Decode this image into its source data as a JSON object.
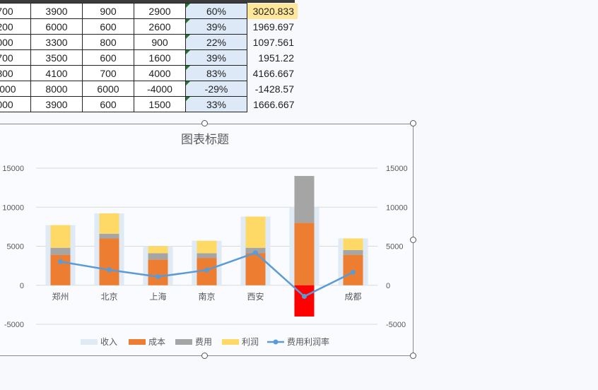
{
  "table": {
    "rows": [
      {
        "city_tail": "700",
        "cost": "3900",
        "fee": "900",
        "profit": "2900",
        "pct": "60%",
        "rate": "3020.833"
      },
      {
        "city_tail": "200",
        "cost": "6000",
        "fee": "600",
        "profit": "2600",
        "pct": "39%",
        "rate": "1969.697"
      },
      {
        "city_tail": "000",
        "cost": "3300",
        "fee": "800",
        "profit": "900",
        "pct": "22%",
        "rate": "1097.561"
      },
      {
        "city_tail": "700",
        "cost": "3500",
        "fee": "600",
        "profit": "1600",
        "pct": "39%",
        "rate": "1951.22"
      },
      {
        "city_tail": "800",
        "cost": "4100",
        "fee": "700",
        "profit": "4000",
        "pct": "83%",
        "rate": "4166.667"
      },
      {
        "city_tail": "0000",
        "cost": "8000",
        "fee": "6000",
        "profit": "-4000",
        "pct": "-29%",
        "rate": "-1428.57"
      },
      {
        "city_tail": "000",
        "cost": "3900",
        "fee": "600",
        "profit": "1500",
        "pct": "33%",
        "rate": "1666.667"
      }
    ]
  },
  "chart_data": {
    "type": "bar",
    "title": "图表标题",
    "categories": [
      "郑州",
      "北京",
      "上海",
      "南京",
      "西安",
      "",
      "成都"
    ],
    "series": [
      {
        "name": "收入",
        "values": [
          7700,
          9200,
          5000,
          5700,
          8800,
          10000,
          6000
        ]
      },
      {
        "name": "成本",
        "values": [
          3900,
          6000,
          3300,
          3500,
          4100,
          8000,
          3900
        ]
      },
      {
        "name": "费用",
        "values": [
          900,
          600,
          800,
          600,
          700,
          6000,
          600
        ]
      },
      {
        "name": "利润",
        "values": [
          2900,
          2600,
          900,
          1600,
          4000,
          -4000,
          1500
        ]
      },
      {
        "name": "费用利润率",
        "values": [
          3020.833,
          1969.697,
          1097.561,
          1951.22,
          4166.667,
          -1428.57,
          1666.667
        ]
      }
    ],
    "ylim": [
      -5000,
      15000
    ],
    "yticks": [
      "15000",
      "10000",
      "5000",
      "0",
      "-5000"
    ],
    "legend_position": "bottom",
    "colors": {
      "income": "#dfeaf4",
      "cost": "#ed7d31",
      "fee": "#a5a5a5",
      "profit": "#ffd966",
      "rate": "#5b9bd5",
      "negative": "#ff0000"
    }
  }
}
